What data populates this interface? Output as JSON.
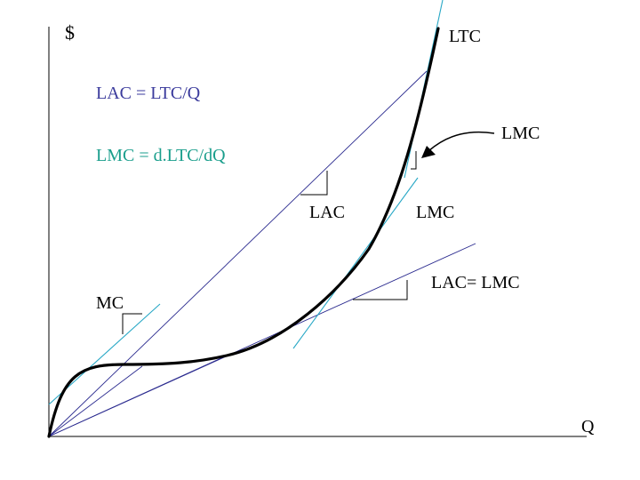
{
  "labels": {
    "y_axis": "$",
    "x_axis": "Q",
    "ltc": "LTC",
    "lac_formula": "LAC = LTC/Q",
    "lmc_formula": "LMC = d.LTC/dQ",
    "lmc_callout": "LMC",
    "lac_slope": "LAC",
    "lmc_slope": "LMC",
    "lac_eq_lmc": "LAC= LMC",
    "mc": "MC"
  },
  "colors": {
    "curve": "#000000",
    "ray": "#2b2b8f",
    "tangent": "#29a8c6",
    "axis": "#000000",
    "formula_lac": "#3a3a9c",
    "formula_lmc": "#1a9e8c"
  }
}
